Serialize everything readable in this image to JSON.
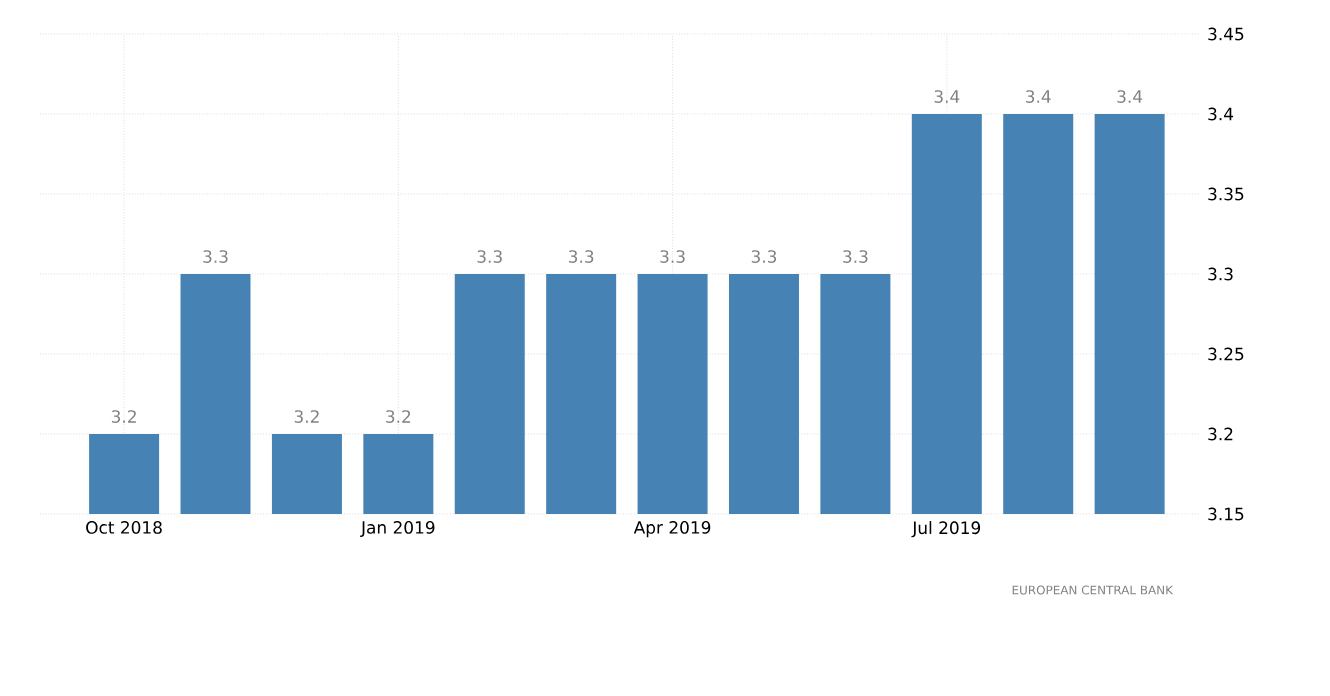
{
  "chart_data": {
    "type": "bar",
    "categories": [
      "Oct 2018",
      null,
      null,
      "Jan 2019",
      null,
      null,
      "Apr 2019",
      null,
      null,
      "Jul 2019",
      null,
      null
    ],
    "values": [
      3.2,
      3.3,
      3.2,
      3.2,
      3.3,
      3.3,
      3.3,
      3.3,
      3.3,
      3.4,
      3.4,
      3.4
    ],
    "color": "#4682b4",
    "ylim": [
      3.15,
      3.45
    ],
    "yticks": [
      3.15,
      3.2,
      3.25,
      3.3,
      3.35,
      3.4,
      3.45
    ],
    "grid": true,
    "data_labels": true,
    "annotations": [
      "EUROPEAN CENTRAL BANK"
    ]
  }
}
